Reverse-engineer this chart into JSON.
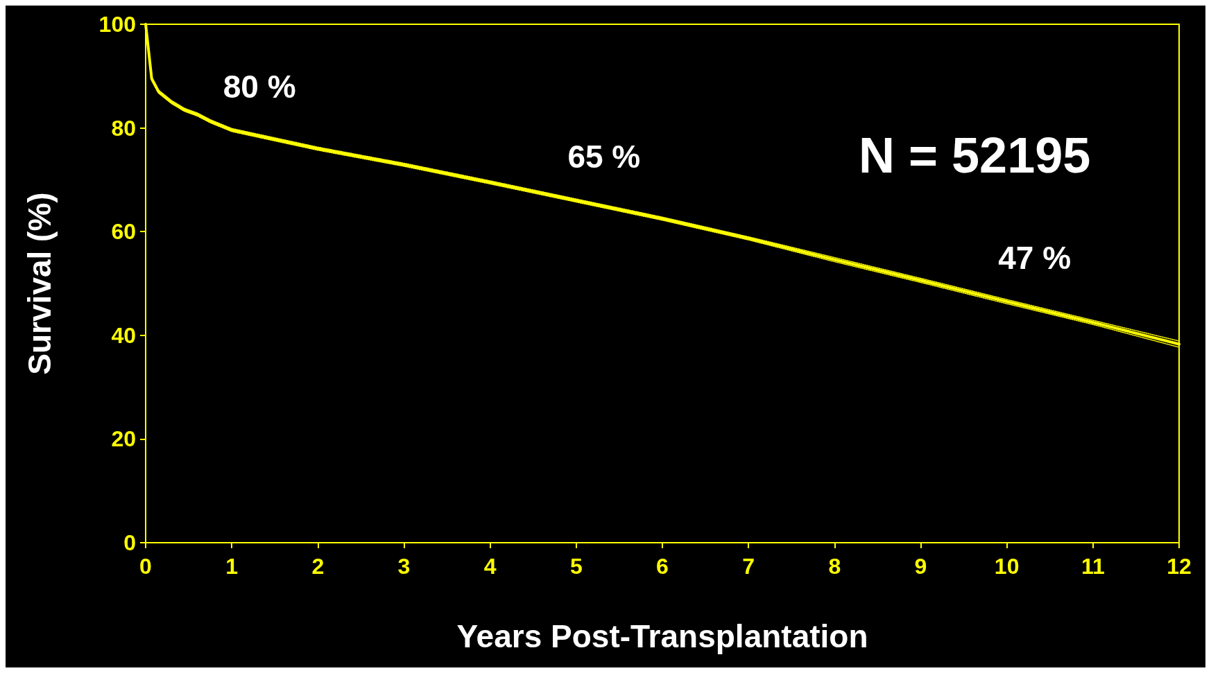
{
  "chart_data": {
    "type": "line",
    "xlabel": "Years Post-Transplantation",
    "ylabel": "Survival (%)",
    "xlim": [
      0,
      12
    ],
    "xticks": [
      0,
      1,
      2,
      3,
      4,
      5,
      6,
      7,
      8,
      9,
      10,
      11,
      12
    ],
    "ylim": [
      0,
      100
    ],
    "yticks": [
      0,
      20,
      40,
      60,
      80,
      100
    ],
    "grid": false,
    "marker": "none",
    "line_style": "solid",
    "x": [
      0,
      0.07,
      0.15,
      0.3,
      0.45,
      0.6,
      0.75,
      1,
      2,
      3,
      4,
      5,
      6,
      7,
      8,
      9,
      10,
      11,
      12
    ],
    "series": [
      {
        "color": "#ffff00",
        "values": [
          100,
          89.5,
          87,
          85,
          83.5,
          82.6,
          81.3,
          79.6,
          76,
          72.9,
          69.5,
          66,
          62.5,
          58.7,
          54.6,
          50.6,
          46.5,
          42.5,
          38.3
        ]
      },
      {
        "color": "#ffff00",
        "line_style": "dotted",
        "values": [
          100,
          89.2,
          86.7,
          84.7,
          83.2,
          82.3,
          81,
          79.3,
          75.7,
          72.6,
          69.2,
          65.7,
          62.2,
          58.4,
          54.2,
          50.2,
          46.1,
          42.1,
          37.7
        ]
      },
      {
        "color": "#ffff00",
        "line_style": "dotted",
        "values": [
          100,
          89.8,
          87.3,
          85.3,
          83.8,
          82.9,
          81.6,
          79.9,
          76.3,
          73.2,
          69.8,
          66.3,
          62.8,
          59,
          55,
          51,
          46.9,
          42.9,
          38.9
        ]
      }
    ],
    "annotations": [
      {
        "text": "80 %",
        "x": 1,
        "y": 79.6
      },
      {
        "text": "65 %",
        "x": 5,
        "y": 66
      },
      {
        "text": "47 %",
        "x": 10,
        "y": 46.5
      },
      "N = 52195"
    ]
  }
}
